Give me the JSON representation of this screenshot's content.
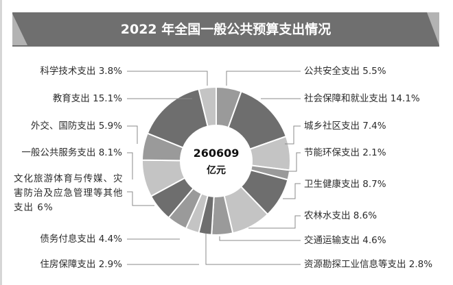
{
  "title": "2022 年全国一般公共预算支出情况",
  "center": {
    "value": "260609",
    "unit": "亿元"
  },
  "colors": {
    "banner": "#6f6f6f",
    "banner_edge": "#b3b3b3",
    "dark": "#6e6e6e",
    "mid": "#9a9a9a",
    "light": "#c4c4c4",
    "line": "#8a8a8a"
  },
  "labels": {
    "l0": "科学技术支出 3.8%",
    "l1": "教育支出 15.1%",
    "l2": "外交、国防支出 5.9%",
    "l3": "一般公共服务支出 8.1%",
    "l4": "文化旅游体育与传媒、灾害防治及应急管理等其他支出 6%",
    "l5": "债务付息支出 4.4%",
    "l6": "住房保障支出 2.9%",
    "r0": "公共安全支出 5.5%",
    "r1": "社会保障和就业支出 14.1%",
    "r2": "城乡社区支出 7.4%",
    "r3": "节能环保支出 2.1%",
    "r4": "卫生健康支出 8.7%",
    "r5": "农林水支出 8.6%",
    "r6": "交通运输支出 4.6%",
    "r7": "资源勘探工业信息等支出 2.8%"
  },
  "chart_data": {
    "type": "pie",
    "subtype": "donut",
    "title": "2022 年全国一般公共预算支出情况",
    "total": 260609,
    "total_unit": "亿元",
    "start": "top, clockwise",
    "categories": [
      "公共安全支出",
      "社会保障和就业支出",
      "城乡社区支出",
      "节能环保支出",
      "卫生健康支出",
      "农林水支出",
      "交通运输支出",
      "资源勘探工业信息等支出",
      "住房保障支出",
      "债务付息支出",
      "文化旅游体育与传媒、灾害防治及应急管理等其他支出",
      "一般公共服务支出",
      "外交、国防支出",
      "教育支出",
      "科学技术支出"
    ],
    "values": [
      5.5,
      14.1,
      7.4,
      2.1,
      8.7,
      8.6,
      4.6,
      2.8,
      2.9,
      4.4,
      6,
      8.1,
      5.9,
      15.1,
      3.8
    ],
    "value_unit": "%",
    "shades": [
      "mid",
      "dark",
      "light",
      "mid",
      "dark",
      "light",
      "mid",
      "dark",
      "light",
      "mid",
      "dark",
      "light",
      "mid",
      "dark",
      "light"
    ],
    "legend": "callout labels with leader lines"
  }
}
